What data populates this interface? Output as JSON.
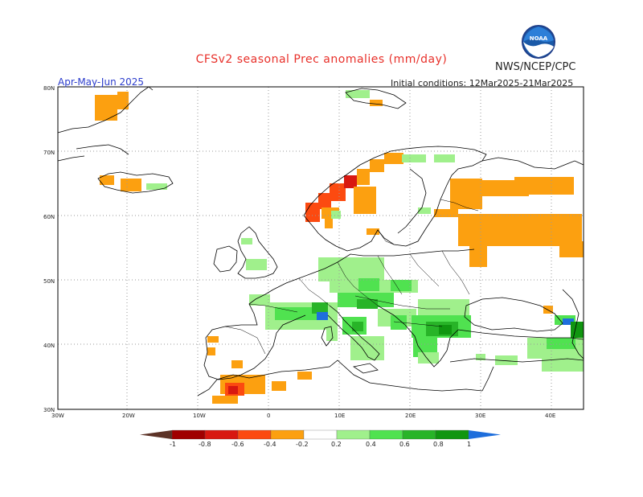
{
  "header": {
    "title": "CFSv2 seasonal Prec anomalies (mm/day)",
    "org": "NWS/NCEP/CPC",
    "logo_text": "NOAA",
    "period": "Apr-May-Jun 2025",
    "initial_conditions": "Initial conditions: 12Mar2025-21Mar2025"
  },
  "map": {
    "lat_labels": [
      "80N",
      "70N",
      "60N",
      "50N",
      "40N",
      "30N"
    ],
    "lon_labels": [
      "30W",
      "20W",
      "10W",
      "0",
      "10E",
      "20E",
      "30E",
      "40E"
    ],
    "grid": true
  },
  "legend": {
    "labels": [
      "-1",
      "-0.8",
      "-0.6",
      "-0.4",
      "-0.2",
      "0.2",
      "0.4",
      "0.6",
      "0.8",
      "1"
    ],
    "colors": [
      "#5c3327",
      "#a00000",
      "#d81810",
      "#fc4a10",
      "#fca010",
      "#ffffff",
      "#a0f08c",
      "#50e250",
      "#28b428",
      "#109610",
      "#1e6edc"
    ]
  },
  "colors": {
    "dry_strong": "#d81810",
    "dry_mid": "#fc4a10",
    "dry_weak": "#fca010",
    "wet_weak": "#a0f08c",
    "wet_mid": "#50e250",
    "wet_strong": "#28b428",
    "wet_max": "#109610",
    "wet_extreme": "#1e6edc"
  }
}
